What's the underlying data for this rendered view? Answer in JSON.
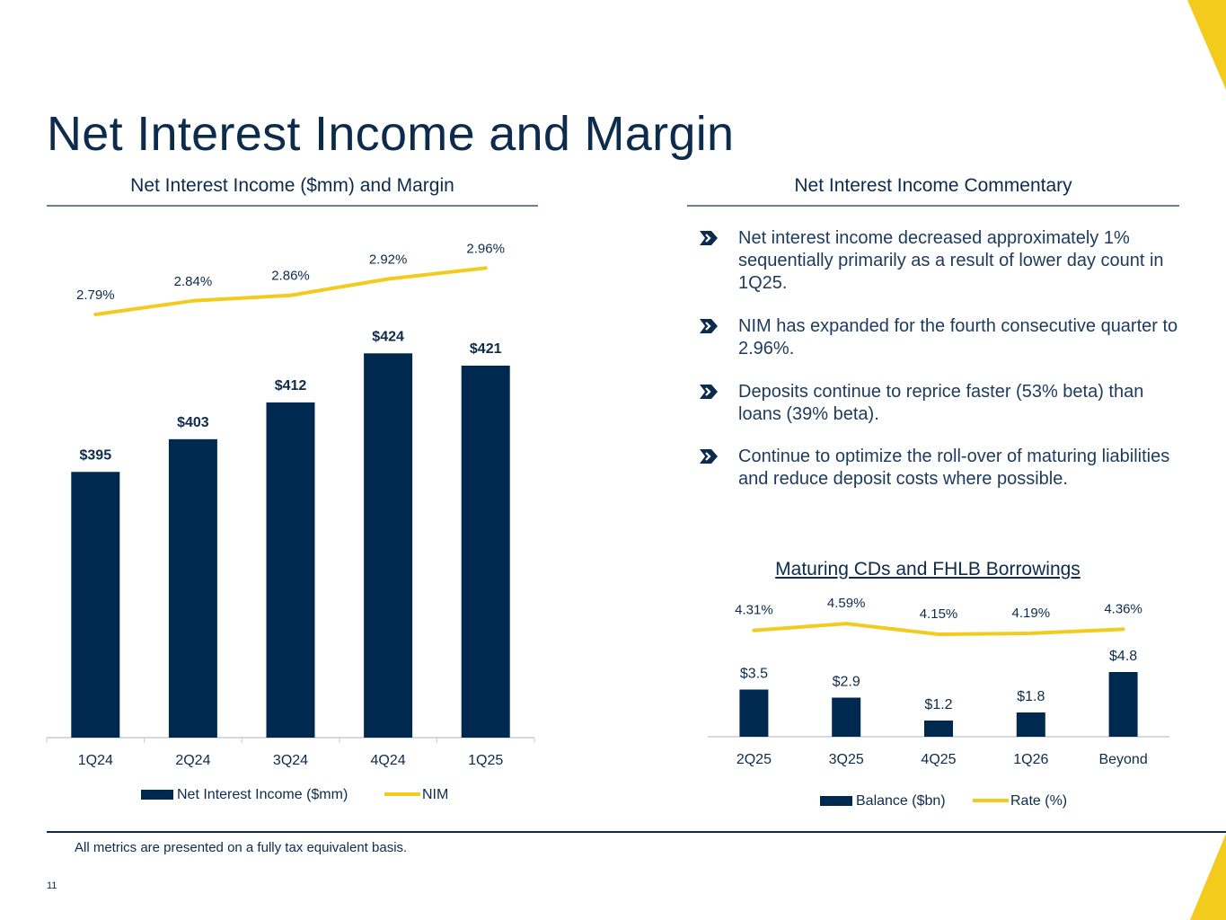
{
  "page": {
    "title": "Net Interest Income and Margin",
    "page_number": "11",
    "footnote": "All metrics are presented on a fully tax equivalent basis.",
    "colors": {
      "navy": "#00294f",
      "accent_yellow": "#f2cb1d",
      "text": "#0d2b4c"
    }
  },
  "left_section": {
    "heading": "Net Interest Income ($mm) and Margin"
  },
  "right_section": {
    "heading": "Net Interest Income Commentary",
    "bullet_icon": "chevron-badge-icon",
    "bullets": [
      "Net interest income decreased approximately 1% sequentially primarily as a result of lower day count in 1Q25.",
      "NIM has expanded for the fourth consecutive quarter to 2.96%.",
      "Deposits continue to reprice faster (53% beta) than loans (39% beta).",
      "Continue to optimize the roll-over of maturing liabilities and reduce deposit costs where possible."
    ]
  },
  "chart_data": [
    {
      "type": "bar",
      "title": "Net Interest Income ($mm) and Margin",
      "categories": [
        "1Q24",
        "2Q24",
        "3Q24",
        "4Q24",
        "1Q25"
      ],
      "series": [
        {
          "name": "Net Interest Income ($mm)",
          "kind": "bar",
          "color": "#00294f",
          "values": [
            395,
            403,
            412,
            424,
            421
          ],
          "labels": [
            "$395",
            "$403",
            "$412",
            "$424",
            "$421"
          ]
        },
        {
          "name": "NIM",
          "kind": "line",
          "color": "#f2cb1d",
          "values": [
            2.79,
            2.84,
            2.86,
            2.92,
            2.96
          ],
          "labels": [
            "2.79%",
            "2.84%",
            "2.86%",
            "2.92%",
            "2.96%"
          ]
        }
      ],
      "legend": [
        "Net Interest Income ($mm)",
        "NIM"
      ],
      "legend_position": "bottom"
    },
    {
      "type": "bar",
      "title": "Maturing CDs and FHLB Borrowings",
      "categories": [
        "2Q25",
        "3Q25",
        "4Q25",
        "1Q26",
        "Beyond"
      ],
      "series": [
        {
          "name": "Balance ($bn)",
          "kind": "bar",
          "color": "#00294f",
          "values": [
            3.5,
            2.9,
            1.2,
            1.8,
            4.8
          ],
          "labels": [
            "$3.5",
            "$2.9",
            "$1.2",
            "$1.8",
            "$4.8"
          ]
        },
        {
          "name": "Rate (%)",
          "kind": "line",
          "color": "#f2cb1d",
          "values": [
            4.31,
            4.59,
            4.15,
            4.19,
            4.36
          ],
          "labels": [
            "4.31%",
            "4.59%",
            "4.15%",
            "4.19%",
            "4.36%"
          ]
        }
      ],
      "legend": [
        "Balance ($bn)",
        "Rate (%)"
      ],
      "legend_position": "bottom"
    }
  ]
}
